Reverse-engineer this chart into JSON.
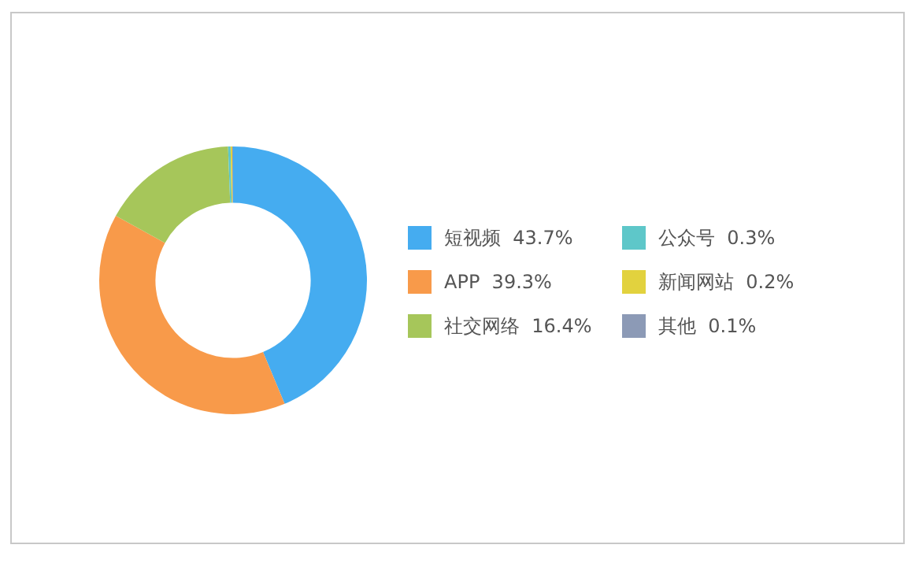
{
  "chart_data": {
    "type": "donut",
    "categories": [
      "短视频",
      "APP",
      "社交网络",
      "公众号",
      "新闻网站",
      "其他"
    ],
    "values": [
      43.7,
      39.3,
      16.4,
      0.3,
      0.2,
      0.1
    ],
    "value_labels": [
      "43.7%",
      "39.3%",
      "16.4%",
      "0.3%",
      "0.2%",
      "0.1%"
    ],
    "colors": [
      "#45acf0",
      "#f89a4a",
      "#a6c65a",
      "#5ec7c9",
      "#e2d23e",
      "#8c9ab6"
    ],
    "legend": "right"
  }
}
